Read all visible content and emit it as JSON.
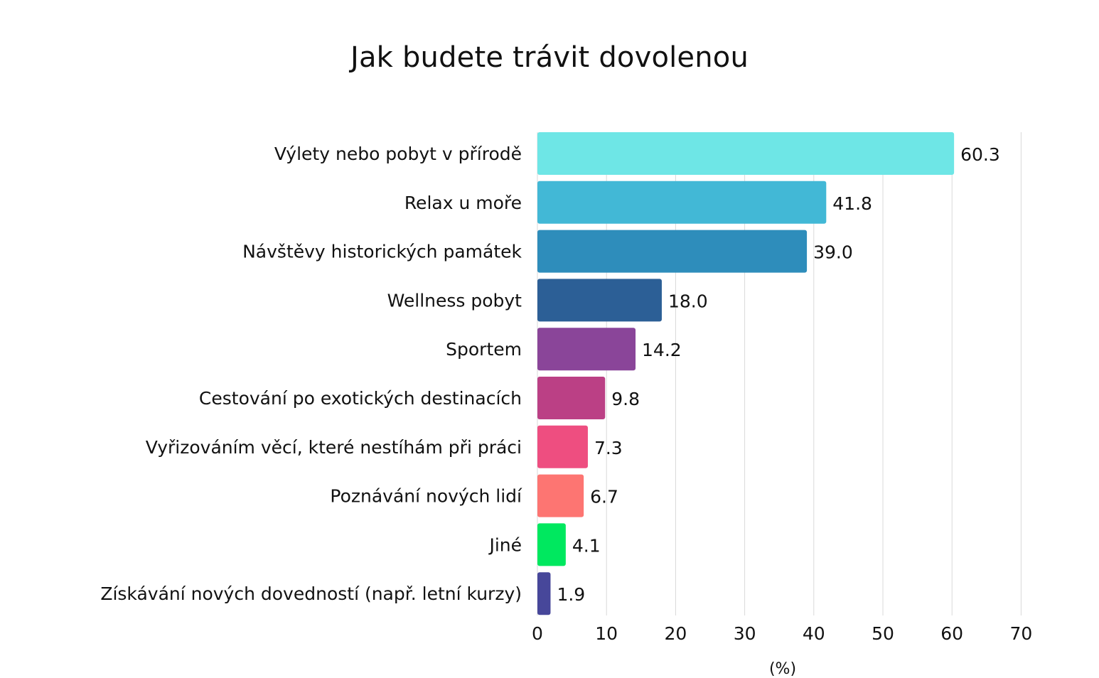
{
  "chart_data": {
    "type": "bar",
    "orientation": "horizontal",
    "title": "Jak budete trávit dovolenou",
    "xlabel": "(%)",
    "ylabel": "",
    "xlim": [
      0,
      70
    ],
    "xticks": [
      0,
      10,
      20,
      30,
      40,
      50,
      60,
      70
    ],
    "grid": true,
    "categories": [
      "Výlety nebo pobyt v přírodě",
      "Relax u moře",
      "Návštěvy historických památek",
      "Wellness pobyt",
      "Sportem",
      "Cestování po exotických destinacích",
      "Vyřizováním věcí, které nestíhám při práci",
      "Poznávání nových lidí",
      "Jiné",
      "Získávání nových dovedností (např. letní kurzy)"
    ],
    "values": [
      60.3,
      41.8,
      39.0,
      18.0,
      14.2,
      9.8,
      7.3,
      6.7,
      4.1,
      1.9
    ],
    "value_labels": [
      "60.3",
      "41.8",
      "39.0",
      "18.0",
      "14.2",
      "9.8",
      "7.3",
      "6.7",
      "4.1",
      "1.9"
    ],
    "colors": [
      "#6ee6e6",
      "#42b8d6",
      "#2e8dbb",
      "#2c5f96",
      "#8a4599",
      "#bb4085",
      "#ee4e80",
      "#fd7572",
      "#00e85f",
      "#47479a"
    ]
  }
}
